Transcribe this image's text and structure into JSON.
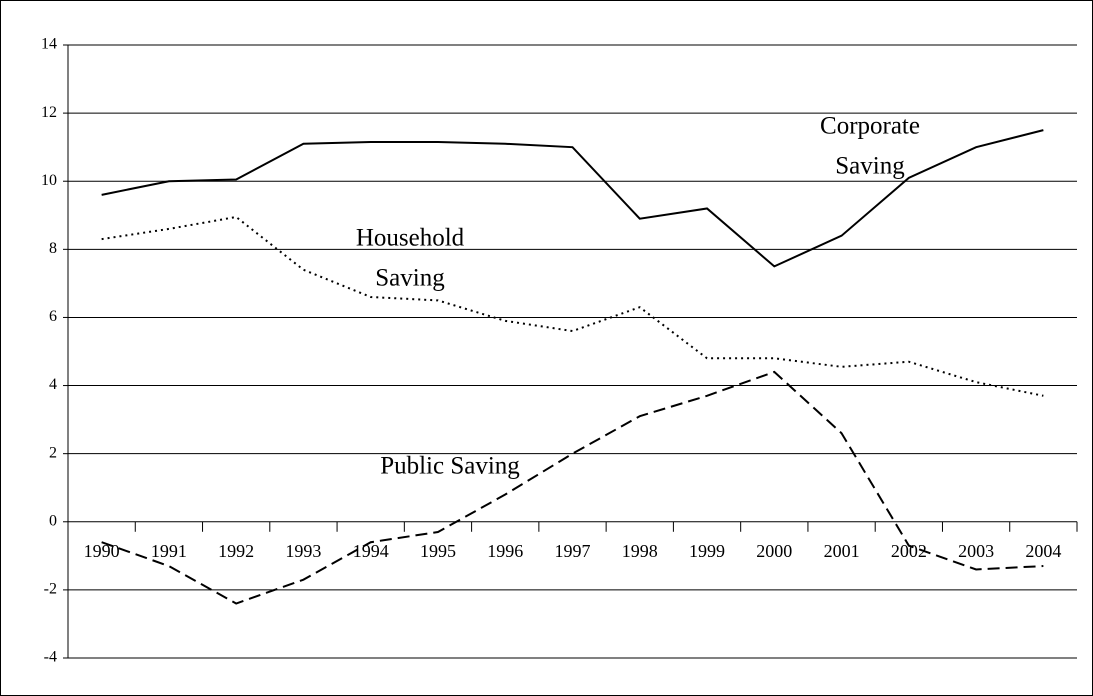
{
  "chart_data": {
    "type": "line",
    "categories": [
      "1990",
      "1991",
      "1992",
      "1993",
      "1994",
      "1995",
      "1996",
      "1997",
      "1998",
      "1999",
      "2000",
      "2001",
      "2002",
      "2003",
      "2004"
    ],
    "series": [
      {
        "color": "#000000",
        "dash": "solid",
        "values": [
          9.6,
          10.0,
          10.05,
          11.1,
          11.15,
          11.15,
          11.1,
          11.0,
          8.9,
          9.2,
          7.5,
          8.4,
          10.1,
          11.0,
          11.5
        ]
      },
      {
        "color": "#000000",
        "dash": "dotted",
        "values": [
          8.3,
          8.6,
          8.95,
          7.4,
          6.6,
          6.5,
          5.9,
          5.6,
          6.3,
          4.8,
          4.8,
          4.55,
          4.7,
          4.1,
          3.7
        ]
      },
      {
        "color": "#000000",
        "dash": "dashed",
        "values": [
          -0.6,
          -1.3,
          -2.4,
          -1.7,
          -0.6,
          -0.3,
          0.8,
          2.0,
          3.1,
          3.7,
          4.4,
          2.6,
          -0.7,
          -1.4,
          -1.3
        ]
      }
    ],
    "annotations": [
      {
        "lines": [
          "Corporate",
          "Saving"
        ]
      },
      {
        "lines": [
          "Household",
          "Saving"
        ]
      },
      {
        "lines": [
          "Public Saving"
        ]
      }
    ],
    "ylim": [
      -4,
      14
    ],
    "yticks": [
      -4,
      -2,
      0,
      2,
      4,
      6,
      8,
      10,
      12,
      14
    ],
    "grid": true
  }
}
